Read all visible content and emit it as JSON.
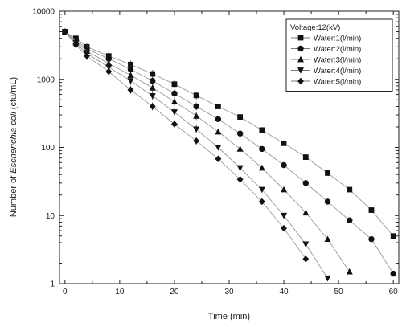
{
  "chart_data": {
    "type": "line",
    "xlabel": "Time (min)",
    "ylabel_prefix": "Number of ",
    "ylabel_italic": "Escherichia coli",
    "ylabel_suffix": " (cfu/mL)",
    "xlim": [
      -1,
      61
    ],
    "ylim": [
      1,
      10000
    ],
    "yscale": "log",
    "x_ticks": [
      0,
      10,
      20,
      30,
      40,
      50,
      60
    ],
    "y_ticks": [
      1,
      10,
      100,
      1000,
      10000
    ],
    "grid": false,
    "legend_position": "top-right",
    "legend_title": "Voltage:12(kV)",
    "series": [
      {
        "name": "Water:1(l/min)",
        "marker": "square",
        "x": [
          0,
          2,
          4,
          8,
          12,
          16,
          20,
          24,
          28,
          32,
          36,
          40,
          44,
          48,
          52,
          56,
          60
        ],
        "y": [
          5000,
          4000,
          3000,
          2200,
          1650,
          1200,
          850,
          580,
          400,
          280,
          180,
          115,
          72,
          42,
          24,
          12,
          5
        ]
      },
      {
        "name": "Water:2(l/min)",
        "marker": "circle",
        "x": [
          0,
          2,
          4,
          8,
          12,
          16,
          20,
          24,
          28,
          32,
          36,
          40,
          44,
          48,
          52,
          56,
          60
        ],
        "y": [
          5000,
          3800,
          2800,
          2000,
          1400,
          950,
          620,
          400,
          260,
          160,
          95,
          55,
          30,
          16,
          8.5,
          4.5,
          1.4
        ]
      },
      {
        "name": "Water:3(l/min)",
        "marker": "triangle-up",
        "x": [
          0,
          2,
          4,
          8,
          12,
          16,
          20,
          24,
          28,
          32,
          36,
          40,
          44,
          48,
          52
        ],
        "y": [
          5000,
          3600,
          2600,
          1700,
          1150,
          750,
          470,
          290,
          170,
          95,
          50,
          24,
          11,
          4.5,
          1.5
        ]
      },
      {
        "name": "Water:4(l/min)",
        "marker": "triangle-down",
        "x": [
          0,
          2,
          4,
          8,
          12,
          16,
          20,
          24,
          28,
          32,
          36,
          40,
          44,
          48
        ],
        "y": [
          5000,
          3400,
          2400,
          1500,
          950,
          570,
          330,
          185,
          100,
          50,
          24,
          10,
          3.8,
          1.2
        ]
      },
      {
        "name": "Water:5(l/min)",
        "marker": "diamond",
        "x": [
          0,
          2,
          4,
          8,
          12,
          16,
          20,
          24,
          28,
          32,
          36,
          40,
          44
        ],
        "y": [
          5000,
          3200,
          2200,
          1300,
          700,
          400,
          220,
          125,
          68,
          34,
          16,
          6.5,
          2.3
        ]
      }
    ]
  }
}
